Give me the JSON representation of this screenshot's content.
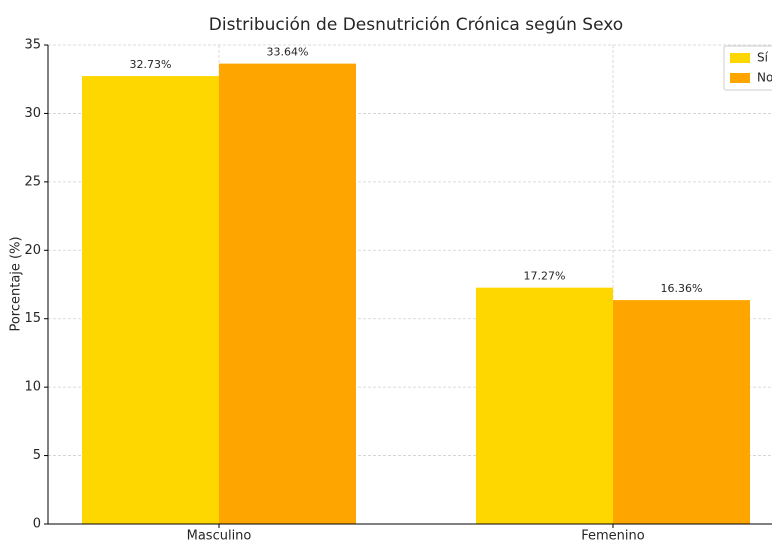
{
  "chart_data": {
    "type": "bar",
    "title": "Distribución de Desnutrición Crónica según Sexo",
    "y_label": "Porcentaje (%)",
    "categories": [
      "Masculino",
      "Femenino"
    ],
    "series": [
      {
        "name": "Sí",
        "color": "#FFD700",
        "values": [
          32.73,
          17.27
        ],
        "value_labels": [
          "32.73%",
          "17.27%"
        ]
      },
      {
        "name": "No",
        "color": "#FFA500",
        "values": [
          33.64,
          16.36
        ],
        "value_labels": [
          "33.64%",
          "16.36%"
        ]
      }
    ],
    "ylim": [
      0,
      35
    ],
    "yticks": [
      0,
      5,
      10,
      15,
      20,
      25,
      30,
      35
    ],
    "grid": true,
    "legend": "upper right"
  }
}
